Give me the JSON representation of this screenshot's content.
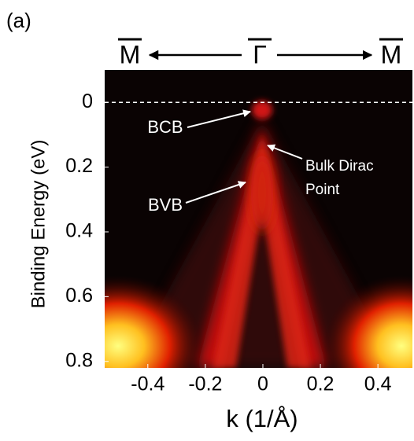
{
  "panel_label": "(a)",
  "chart_data": {
    "type": "image",
    "xlabel": "k (1/Å)",
    "ylabel": "Binding Energy (eV)",
    "xlim": [
      -0.55,
      0.52
    ],
    "xticks": [
      -0.4,
      -0.2,
      0,
      0.2,
      0.4
    ],
    "ylim": [
      -0.1,
      0.82
    ],
    "yticks": [
      0,
      0.2,
      0.4,
      0.6,
      0.8
    ],
    "y_inverted": true,
    "top_labels": [
      "M",
      "Γ",
      "M"
    ],
    "annotations": [
      {
        "lines": [
          "BCB"
        ]
      },
      {
        "lines": [
          "BVB"
        ]
      },
      {
        "lines": [
          "Bulk Dirac",
          "Point"
        ]
      }
    ]
  }
}
